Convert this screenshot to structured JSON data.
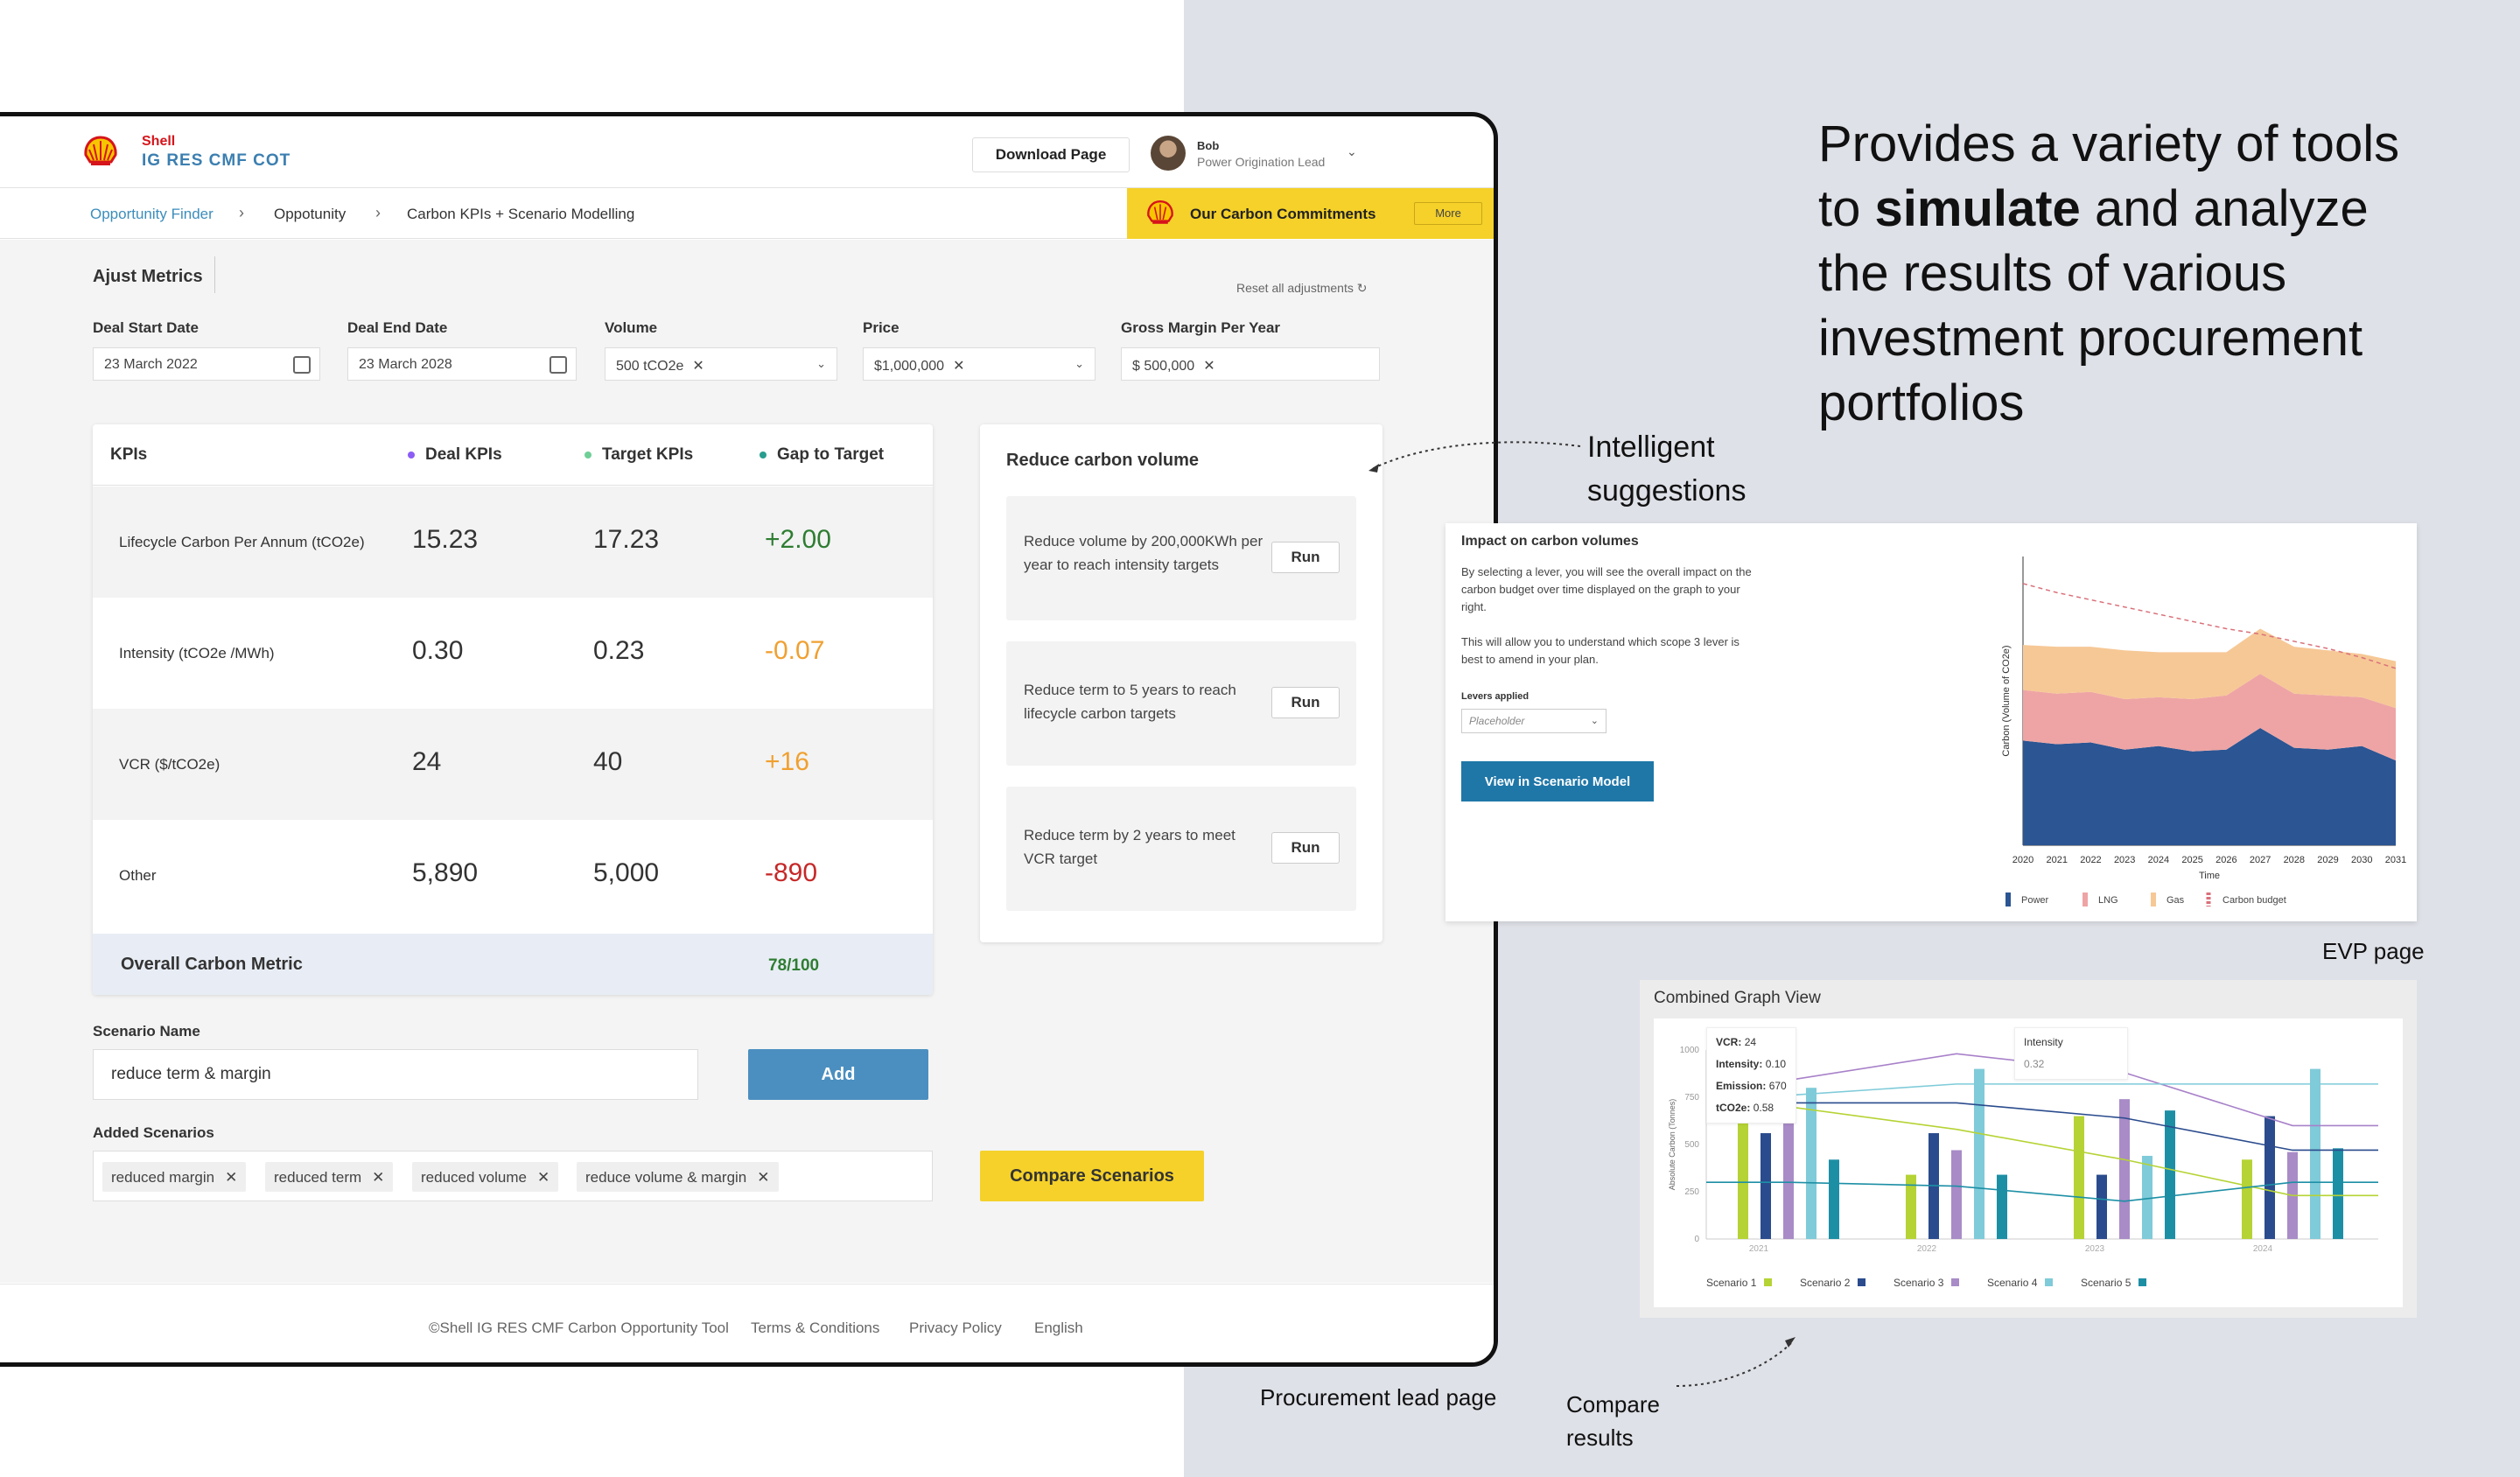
{
  "app": {
    "brand_top": "Shell",
    "brand_bottom": "IG RES CMF COT",
    "download_label": "Download Page",
    "user_name": "Bob",
    "user_role": "Power Origination Lead"
  },
  "breadcrumb": [
    "Opportunity Finder",
    "Oppotunity",
    "Carbon KPIs + Scenario Modelling"
  ],
  "banner": {
    "label": "Our Carbon Commitments",
    "more_label": "More"
  },
  "metrics": {
    "title": "Ajust Metrics",
    "reset_label": "Reset all adjustments",
    "fields": [
      {
        "label": "Deal Start Date",
        "value": "23 March 2022"
      },
      {
        "label": "Deal End Date",
        "value": "23 March 2028"
      },
      {
        "label": "Volume",
        "value": "500 tCO2e"
      },
      {
        "label": "Price",
        "value": "$1,000,000"
      },
      {
        "label": "Gross Margin Per Year",
        "value": "$ 500,000"
      }
    ]
  },
  "kpi": {
    "headers": [
      "KPIs",
      "Deal KPIs",
      "Target KPIs",
      "Gap to Target"
    ],
    "header_dot_colors": [
      "#8b5cf6",
      "#6fcf97",
      "#2a9d8f"
    ],
    "rows": [
      {
        "name": "Lifecycle Carbon Per Annum (tCO2e)",
        "deal": "15.23",
        "target": "17.23",
        "gap": "+2.00",
        "gap_color": "#2e7d32"
      },
      {
        "name": "Intensity (tCO2e /MWh)",
        "deal": "0.30",
        "target": "0.23",
        "gap": "-0.07",
        "gap_color": "#f0a030"
      },
      {
        "name": "VCR ($/tCO2e)",
        "deal": "24",
        "target": "40",
        "gap": "+16",
        "gap_color": "#f0a030"
      },
      {
        "name": "Other",
        "deal": "5,890",
        "target": "5,000",
        "gap": "-890",
        "gap_color": "#c62828"
      }
    ],
    "overall_label": "Overall Carbon Metric",
    "overall_score": "78/100"
  },
  "suggestions": {
    "title": "Reduce carbon volume",
    "run_label": "Run",
    "items": [
      "Reduce volume by 200,000KWh per year to reach intensity targets",
      "Reduce term to 5 years to reach lifecycle carbon targets",
      "Reduce term by 2 years to meet VCR target"
    ]
  },
  "scenario": {
    "name_label": "Scenario Name",
    "name_value": "reduce term & margin",
    "add_label": "Add",
    "added_label": "Added Scenarios",
    "chips": [
      "reduced margin",
      "reduced term",
      "reduced volume",
      "reduce volume & margin"
    ],
    "compare_label": "Compare Scenarios"
  },
  "footer": [
    "©Shell IG RES CMF Carbon Opportunity Tool",
    "Terms & Conditions",
    "Privacy Policy",
    "English"
  ],
  "annotations": {
    "headline_1": "Provides a variety of tools",
    "headline_2a": "to ",
    "headline_2b": "simulate",
    "headline_2c": " and analyze",
    "headline_3": "the results of various",
    "headline_4": "investment procurement",
    "headline_5": "portfolios",
    "intelligent_1": "Intelligent",
    "intelligent_2": "suggestions",
    "evp_page": "EVP page",
    "procurement_page": "Procurement lead page",
    "compare_1": "Compare",
    "compare_2": "results"
  },
  "impact_panel": {
    "title": "Impact on carbon volumes",
    "desc_1": "By selecting a lever, you will see the overall impact on the carbon budget over time displayed on the graph to your right.",
    "desc_2": "This will allow you to understand which scope 3 lever is best to amend in your plan.",
    "levers_label": "Levers applied",
    "select_placeholder": "Placeholder",
    "button_label": "View in Scenario Model"
  },
  "combined_panel": {
    "title": "Combined Graph View",
    "tooltip_vcr_label": "VCR:",
    "tooltip_vcr": "24",
    "tooltip_int_label": "Intensity:",
    "tooltip_int": "0.10",
    "tooltip_em_label": "Emission:",
    "tooltip_em": "670",
    "tooltip_tco_label": "tCO2e:",
    "tooltip_tco": "0.58",
    "tooltip2_label": "Intensity",
    "tooltip2_value": "0.32"
  },
  "chart_data": [
    {
      "type": "area",
      "ylabel": "Carbon (Volume of CO2e)",
      "xlabel": "Time",
      "categories": [
        "2020",
        "2021",
        "2022",
        "2023",
        "2024",
        "2025",
        "2026",
        "2027",
        "2028",
        "2029",
        "2030",
        "2031"
      ],
      "series": [
        {
          "name": "Power",
          "color": "#2b5593",
          "values": [
            58,
            56,
            57,
            53,
            55,
            52,
            53,
            65,
            54,
            53,
            55,
            47
          ]
        },
        {
          "name": "LNG",
          "color": "#eea4a4",
          "values": [
            28,
            28,
            28,
            28,
            27,
            29,
            30,
            30,
            30,
            30,
            27,
            29
          ]
        },
        {
          "name": "Gas",
          "color": "#f6c896",
          "values": [
            25,
            26,
            25,
            27,
            25,
            26,
            24,
            25,
            26,
            25,
            24,
            26
          ]
        }
      ],
      "line_series": {
        "name": "Carbon budget",
        "color": "#d9707a",
        "values": [
          145,
          140,
          136,
          132,
          128,
          124,
          120,
          117,
          113,
          109,
          104,
          98
        ]
      },
      "ylim": [
        0,
        160
      ]
    },
    {
      "type": "bar",
      "ylabel": "Absolute Carbon (Tonnes)",
      "categories": [
        "2021",
        "2022",
        "2023",
        "2024"
      ],
      "yticks": [
        "0",
        "250",
        "500",
        "750",
        "1000"
      ],
      "ylim": [
        0,
        1000
      ],
      "series": [
        {
          "name": "Scenario 1",
          "color": "#b5d334",
          "values": [
            680,
            340,
            650,
            420
          ]
        },
        {
          "name": "Scenario 2",
          "color": "#2a4b8d",
          "values": [
            560,
            560,
            340,
            650
          ]
        },
        {
          "name": "Scenario 3",
          "color": "#a88bc7",
          "values": [
            760,
            470,
            740,
            460
          ]
        },
        {
          "name": "Scenario 4",
          "color": "#7fcbd9",
          "values": [
            800,
            900,
            440,
            900
          ]
        },
        {
          "name": "Scenario 5",
          "color": "#1d8fa5",
          "values": [
            420,
            340,
            680,
            480
          ]
        }
      ],
      "lines": [
        {
          "color": "#a881c9",
          "values": [
            840,
            980,
            880,
            600
          ]
        },
        {
          "color": "#2a4b8d",
          "values": [
            720,
            720,
            640,
            470
          ]
        },
        {
          "color": "#b5d334",
          "values": [
            700,
            580,
            420,
            230
          ]
        },
        {
          "color": "#7fcbd9",
          "values": [
            760,
            820,
            820,
            820
          ]
        },
        {
          "color": "#1d8fa5",
          "values": [
            300,
            280,
            200,
            300
          ]
        }
      ]
    }
  ]
}
